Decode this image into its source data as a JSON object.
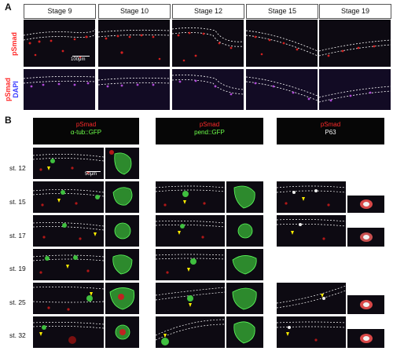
{
  "panel_a": {
    "letter": "A",
    "stages": [
      "Stage 9",
      "Stage 10",
      "Stage 12",
      "Stage 15",
      "Stage 19"
    ],
    "row_labels": {
      "top": "pSmad",
      "bottom_red": "pSmad",
      "bottom_blue": "DAPI"
    },
    "scale_bar": "100μm"
  },
  "panel_b": {
    "letter": "B",
    "columns": [
      {
        "line1": "pSmad",
        "line2": "α-tub::GFP"
      },
      {
        "line1": "pSmad",
        "line2": "pend::GFP"
      },
      {
        "line1": "pSmad",
        "line2": "P63"
      }
    ],
    "rows": [
      "st. 12",
      "st. 15",
      "st. 17",
      "st. 19",
      "st. 25",
      "st. 32"
    ],
    "scale_bar": "50μm"
  },
  "colors": {
    "red_stain": "#ff2a2a",
    "green_stain": "#6dff4a",
    "blue_stain": "#3b3bff",
    "background": "#0d0a12"
  }
}
